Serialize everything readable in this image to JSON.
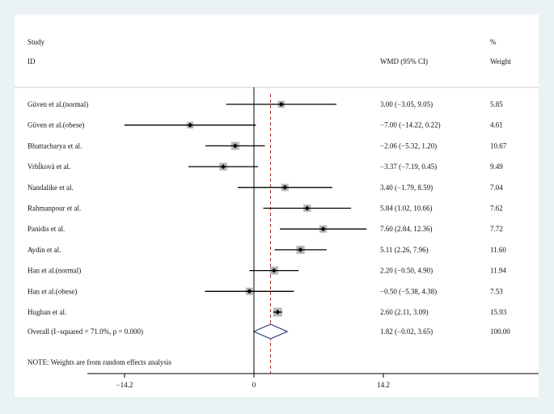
{
  "chart_data": {
    "type": "forest",
    "header": {
      "study_label": "Study",
      "id_label": "ID",
      "effect_label": "WMD (95% CI)",
      "weight_top_label": "%",
      "weight_label": "Weight"
    },
    "studies": [
      {
        "name": "Güven et al.(normal)",
        "estimate": 3.0,
        "lower": -3.05,
        "upper": 9.05,
        "ci_text": "3.00 (−3.05, 9.05)",
        "weight": 5.85,
        "weight_text": "5.85"
      },
      {
        "name": "Güven et al.(obese)",
        "estimate": -7.0,
        "lower": -14.22,
        "upper": 0.22,
        "ci_text": "−7.00 (−14.22, 0.22)",
        "weight": 4.61,
        "weight_text": "4.61"
      },
      {
        "name": "Bhattacharya et al.",
        "estimate": -2.06,
        "lower": -5.32,
        "upper": 1.2,
        "ci_text": "−2.06 (−5.32, 1.20)",
        "weight": 10.67,
        "weight_text": "10.67"
      },
      {
        "name": "Vrbĺková et al.",
        "estimate": -3.37,
        "lower": -7.19,
        "upper": 0.45,
        "ci_text": "−3.37 (−7.19, 0.45)",
        "weight": 9.49,
        "weight_text": "9.49"
      },
      {
        "name": "Nandalike et al.",
        "estimate": 3.4,
        "lower": -1.79,
        "upper": 8.59,
        "ci_text": "3.40 (−1.79, 8.59)",
        "weight": 7.04,
        "weight_text": "7.04"
      },
      {
        "name": "Rahmanpour et al.",
        "estimate": 5.84,
        "lower": 1.02,
        "upper": 10.66,
        "ci_text": "5.84 (1.02, 10.66)",
        "weight": 7.62,
        "weight_text": "7.62"
      },
      {
        "name": "Panidis et al.",
        "estimate": 7.6,
        "lower": 2.84,
        "upper": 12.36,
        "ci_text": "7.60 (2.84, 12.36)",
        "weight": 7.72,
        "weight_text": "7.72"
      },
      {
        "name": "Aydin et al.",
        "estimate": 5.11,
        "lower": 2.26,
        "upper": 7.96,
        "ci_text": "5.11 (2.26, 7.96)",
        "weight": 11.6,
        "weight_text": "11.60"
      },
      {
        "name": "Han et al.(normal)",
        "estimate": 2.2,
        "lower": -0.5,
        "upper": 4.9,
        "ci_text": "2.20 (−0.50, 4.90)",
        "weight": 11.94,
        "weight_text": "11.94"
      },
      {
        "name": "Han et al.(obese)",
        "estimate": -0.5,
        "lower": -5.38,
        "upper": 4.38,
        "ci_text": "−0.50 (−5.38, 4.38)",
        "weight": 7.53,
        "weight_text": "7.53"
      },
      {
        "name": "Hughan et al.",
        "estimate": 2.6,
        "lower": 2.11,
        "upper": 3.09,
        "ci_text": "2.60 (2.11, 3.09)",
        "weight": 15.93,
        "weight_text": "15.93"
      }
    ],
    "overall": {
      "label": "Overall  (I−squared = 71.0%, p = 0.000)",
      "estimate": 1.82,
      "lower": -0.02,
      "upper": 3.65,
      "ci_text": "1.82 (−0.02, 3.65)",
      "weight_text": "100.00"
    },
    "note": "NOTE: Weights are from random effects analysis",
    "xaxis": {
      "ticks": [
        -14.2,
        0,
        14.2
      ],
      "tick_labels": [
        "−14.2",
        "0",
        "14.2"
      ],
      "range": [
        -14.2,
        14.2
      ]
    },
    "reference_line": 0,
    "colors": {
      "ci_line": "#000000",
      "weight_box": "#b8b8b8",
      "diamond": "#2b3a7a",
      "overall_line": "#b03030",
      "null_line": "#000000",
      "background": "#eaf2f3"
    }
  }
}
